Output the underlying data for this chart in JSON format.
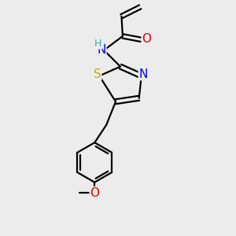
{
  "bg_color": "#ececec",
  "bond_color": "#000000",
  "lw": 1.6,
  "atom_colors": {
    "N": "#0000ee",
    "O": "#dd0000",
    "S": "#ccaa00",
    "H": "#33aaaa"
  },
  "font_size": 10
}
